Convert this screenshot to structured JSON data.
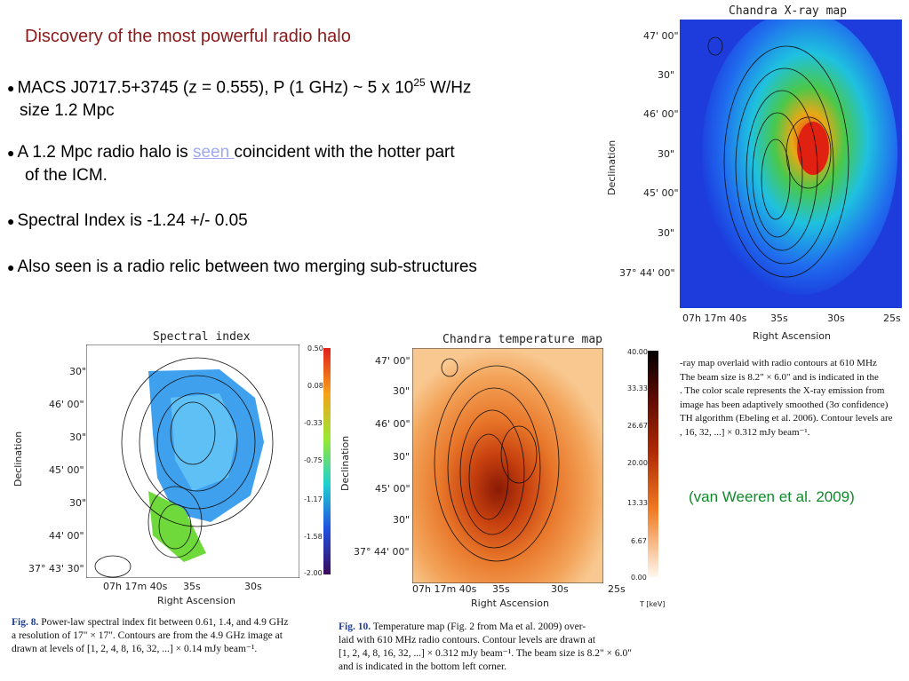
{
  "slide": {
    "title": "Discovery of the most powerful radio halo",
    "bullets": [
      {
        "line1_pre": "MACS J0717.5+3745 (z = 0.555), P (1 GHz) ~ 5 x 10",
        "sup": "25",
        "line1_post": " W/Hz",
        "line2": "size 1.2 Mpc"
      },
      {
        "line1_pre": "A 1.2 Mpc radio halo is ",
        "link": "seen ",
        "line1_post": "coincident with the hotter part",
        "line2": "of the ICM."
      },
      {
        "text": "Spectral Index is -1.24 +/- 0.05"
      },
      {
        "text": "Also seen is a radio relic between two merging sub-structures"
      }
    ],
    "credit": "(van Weeren et al. 2009)"
  },
  "xray_panel": {
    "title": "Chandra X-ray map",
    "ylabel": "Declination",
    "xlabel": "Right Ascension",
    "yticks": [
      "47' 00\"",
      "30\"",
      "46' 00\"",
      "30\"",
      "45' 00\"",
      "30\"",
      "37° 44' 00\""
    ],
    "xticks": [
      "07h 17m 40s",
      "35s",
      "30s",
      "25s"
    ],
    "caption_lines": [
      "-ray map overlaid with radio contours at 610 MHz",
      "The beam size is 8.2\" × 6.0\" and is indicated in the",
      ". The color scale represents the X-ray emission from",
      "image has been adaptively smoothed (3σ confidence)",
      "TH algorithm (Ebeling et al. 2006). Contour levels are",
      ", 16, 32, ...] × 0.312 mJy beam⁻¹."
    ]
  },
  "spectral_panel": {
    "title": "Spectral index",
    "ylabel": "Declination",
    "xlabel": "Right Ascension",
    "yticks": [
      "30\"",
      "46' 00\"",
      "30\"",
      "45' 00\"",
      "30\"",
      "44' 00\"",
      "37° 43' 30\""
    ],
    "xticks": [
      "07h 17m 40s",
      "35s",
      "30s"
    ],
    "colorbar": [
      "0.50",
      "0.08",
      "-0.33",
      "-0.75",
      "-1.17",
      "-1.58",
      "-2.00"
    ],
    "caption_label": "Fig. 8.",
    "caption_lines": [
      "Power-law spectral index fit between 0.61, 1.4, and 4.9 GHz",
      "a resolution of 17\" × 17\". Contours are from the 4.9 GHz image at",
      "drawn at levels of [1, 2, 4, 8, 16, 32, ...] × 0.14 mJy beam⁻¹."
    ]
  },
  "temp_panel": {
    "title": "Chandra temperature map",
    "ylabel": "Declination",
    "xlabel": "Right Ascension",
    "yticks": [
      "47' 00\"",
      "30\"",
      "46' 00\"",
      "30\"",
      "45' 00\"",
      "30\"",
      "37° 44' 00\""
    ],
    "xticks": [
      "07h 17m 40s",
      "35s",
      "30s",
      "25s"
    ],
    "colorbar": [
      "40.00",
      "33.33",
      "26.67",
      "20.00",
      "13.33",
      "6.67",
      "0.00"
    ],
    "unit": "T [keV]",
    "caption_label": "Fig. 10.",
    "caption_lines": [
      "Temperature map (Fig. 2 from Ma et al. 2009) over-",
      "laid with 610 MHz radio contours. Contour levels are drawn at",
      "[1, 2, 4, 8, 16, 32, ...] × 0.312 mJy beam⁻¹. The beam size is 8.2\" × 6.0\"",
      "and is indicated in the bottom left corner."
    ]
  }
}
